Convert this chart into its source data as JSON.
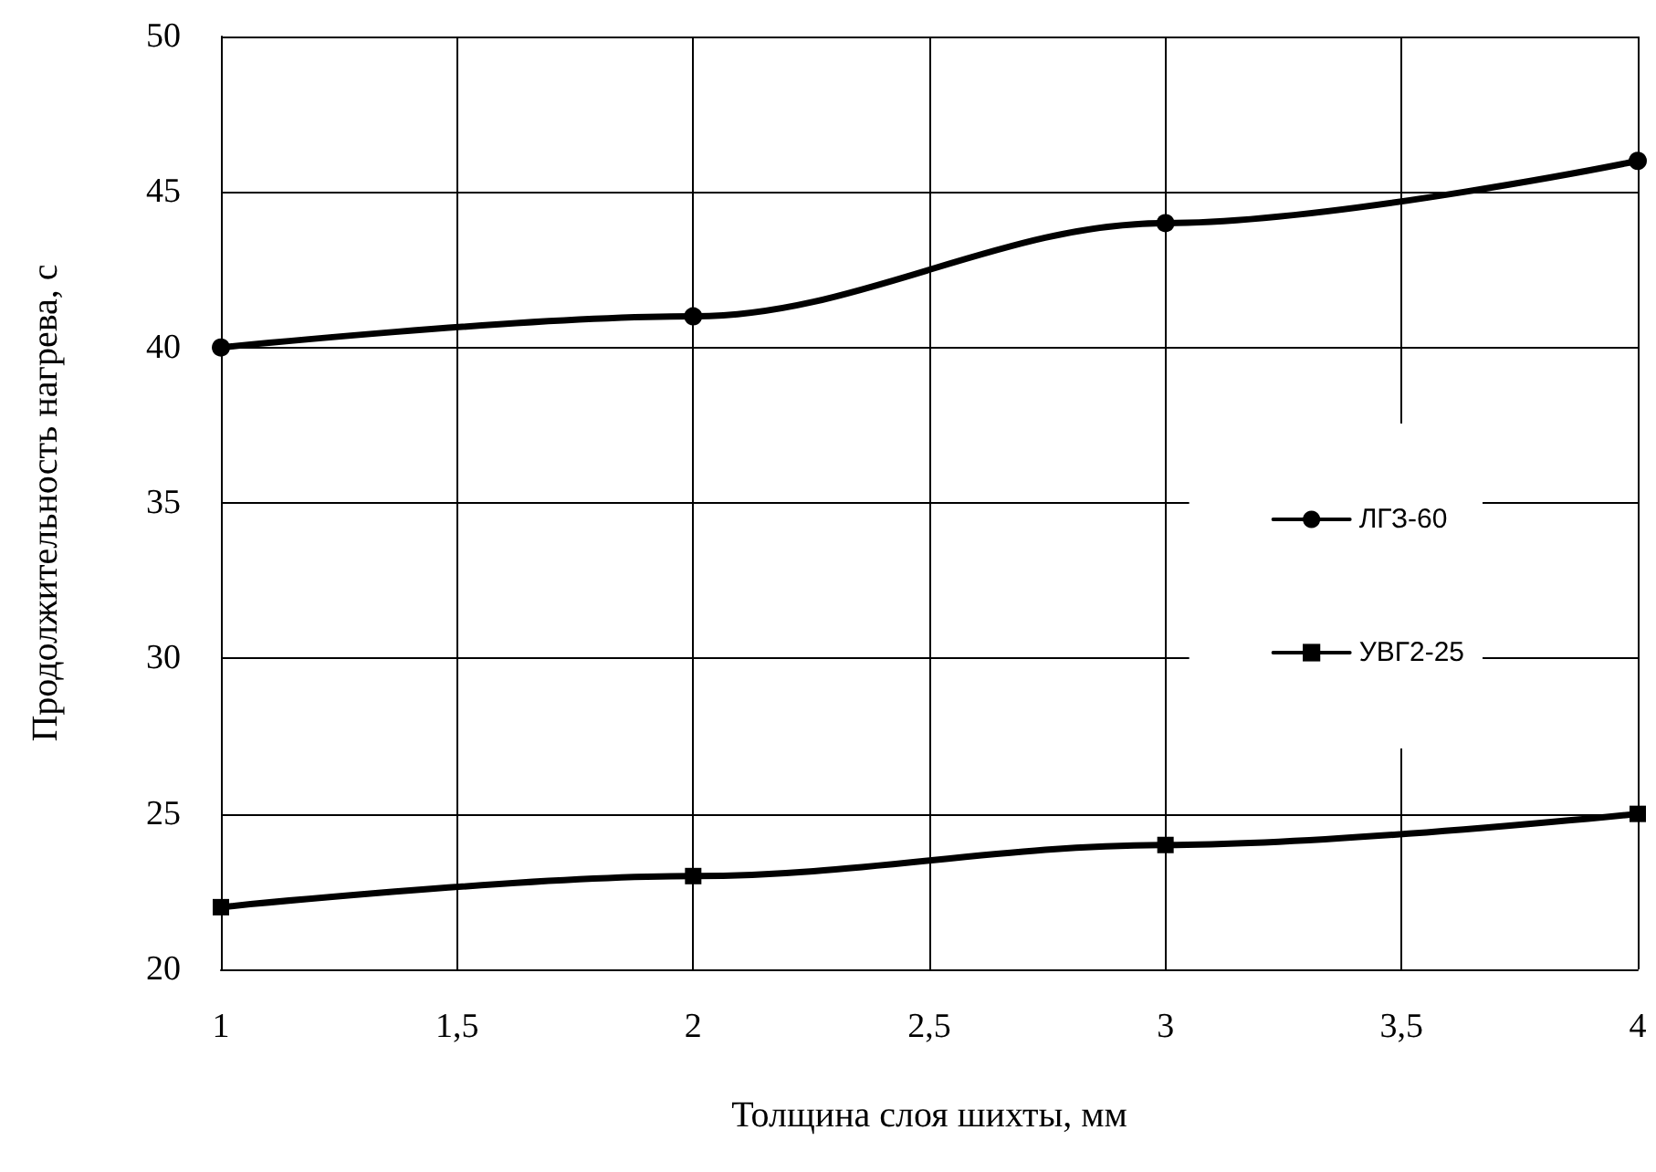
{
  "chart_data": {
    "type": "line",
    "xlabel": "Толщина слоя шихты, мм",
    "ylabel": "Продолжительность нагрева, с",
    "xlim": [
      1,
      4
    ],
    "xticks": [
      1,
      {
        "value": 1.5,
        "label": "1,5"
      },
      2,
      {
        "value": 2.5,
        "label": "2,5"
      },
      3,
      {
        "value": 3.5,
        "label": "3,5"
      },
      4
    ],
    "ylim": [
      20,
      50
    ],
    "yticks": [
      20,
      25,
      30,
      35,
      40,
      45,
      50
    ],
    "x": [
      1,
      2,
      3,
      4
    ],
    "series": [
      {
        "name": "ЛГЗ-60",
        "color": "#000000",
        "marker": "circle",
        "values": [
          40,
          41,
          44,
          46
        ]
      },
      {
        "name": "УВГ2-25",
        "color": "#000000",
        "marker": "square",
        "values": [
          22,
          23,
          24,
          25
        ]
      }
    ],
    "grid": true,
    "legend": "right",
    "line_style": "solid"
  }
}
